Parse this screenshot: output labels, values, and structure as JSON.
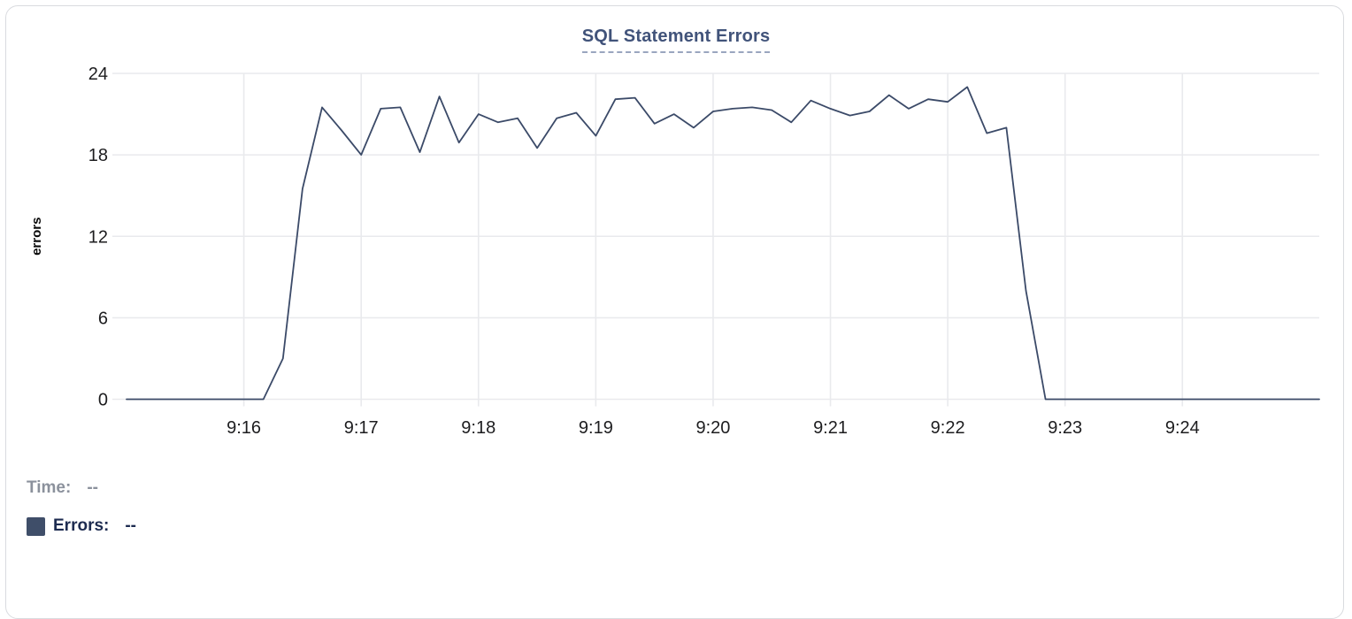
{
  "chart_data": {
    "type": "line",
    "title": "SQL Statement Errors",
    "xlabel": "",
    "ylabel": "errors",
    "ylim": [
      0,
      24
    ],
    "y_ticks": [
      0,
      6,
      12,
      18,
      24
    ],
    "x_ticks": [
      "9:16",
      "9:17",
      "9:18",
      "9:19",
      "9:20",
      "9:21",
      "9:22",
      "9:23",
      "9:24"
    ],
    "x_range": [
      "9:15:00",
      "9:25:10"
    ],
    "grid": true,
    "legend_position": "bottom-left",
    "series": [
      {
        "name": "Errors",
        "color": "#3b4a68",
        "points": [
          [
            "9:15:00",
            0
          ],
          [
            "9:15:10",
            0
          ],
          [
            "9:15:20",
            0
          ],
          [
            "9:15:30",
            0
          ],
          [
            "9:15:40",
            0
          ],
          [
            "9:15:50",
            0
          ],
          [
            "9:16:00",
            0
          ],
          [
            "9:16:10",
            0
          ],
          [
            "9:16:20",
            3
          ],
          [
            "9:16:30",
            15.5
          ],
          [
            "9:16:40",
            21.5
          ],
          [
            "9:16:50",
            19.8
          ],
          [
            "9:17:00",
            18
          ],
          [
            "9:17:10",
            21.4
          ],
          [
            "9:17:20",
            21.5
          ],
          [
            "9:17:30",
            18.2
          ],
          [
            "9:17:40",
            22.3
          ],
          [
            "9:17:50",
            18.9
          ],
          [
            "9:18:00",
            21
          ],
          [
            "9:18:10",
            20.4
          ],
          [
            "9:18:20",
            20.7
          ],
          [
            "9:18:30",
            18.5
          ],
          [
            "9:18:40",
            20.7
          ],
          [
            "9:18:50",
            21.1
          ],
          [
            "9:19:00",
            19.4
          ],
          [
            "9:19:10",
            22.1
          ],
          [
            "9:19:20",
            22.2
          ],
          [
            "9:19:30",
            20.3
          ],
          [
            "9:19:40",
            21
          ],
          [
            "9:19:50",
            20
          ],
          [
            "9:20:00",
            21.2
          ],
          [
            "9:20:10",
            21.4
          ],
          [
            "9:20:20",
            21.5
          ],
          [
            "9:20:30",
            21.3
          ],
          [
            "9:20:40",
            20.4
          ],
          [
            "9:20:50",
            22
          ],
          [
            "9:21:00",
            21.4
          ],
          [
            "9:21:10",
            20.9
          ],
          [
            "9:21:20",
            21.2
          ],
          [
            "9:21:30",
            22.4
          ],
          [
            "9:21:40",
            21.4
          ],
          [
            "9:21:50",
            22.1
          ],
          [
            "9:22:00",
            21.9
          ],
          [
            "9:22:10",
            23
          ],
          [
            "9:22:20",
            19.6
          ],
          [
            "9:22:30",
            20
          ],
          [
            "9:22:40",
            8
          ],
          [
            "9:22:50",
            0
          ],
          [
            "9:23:00",
            0
          ],
          [
            "9:23:10",
            0
          ],
          [
            "9:23:20",
            0
          ],
          [
            "9:23:30",
            0
          ],
          [
            "9:23:40",
            0
          ],
          [
            "9:23:50",
            0
          ],
          [
            "9:24:00",
            0
          ],
          [
            "9:24:10",
            0
          ],
          [
            "9:24:20",
            0
          ],
          [
            "9:24:30",
            0
          ],
          [
            "9:24:40",
            0
          ],
          [
            "9:24:50",
            0
          ],
          [
            "9:25:00",
            0
          ],
          [
            "9:25:10",
            0
          ]
        ]
      }
    ]
  },
  "legend": {
    "time_label": "Time:",
    "time_value": "--",
    "errors_label": "Errors:",
    "errors_value": "--",
    "swatch_color": "#3f4e69"
  },
  "colors": {
    "grid": "#e9eaed",
    "tick_text": "#1d1d1f",
    "axis_title": "#0a0a0a",
    "line": "#3b4a68"
  }
}
